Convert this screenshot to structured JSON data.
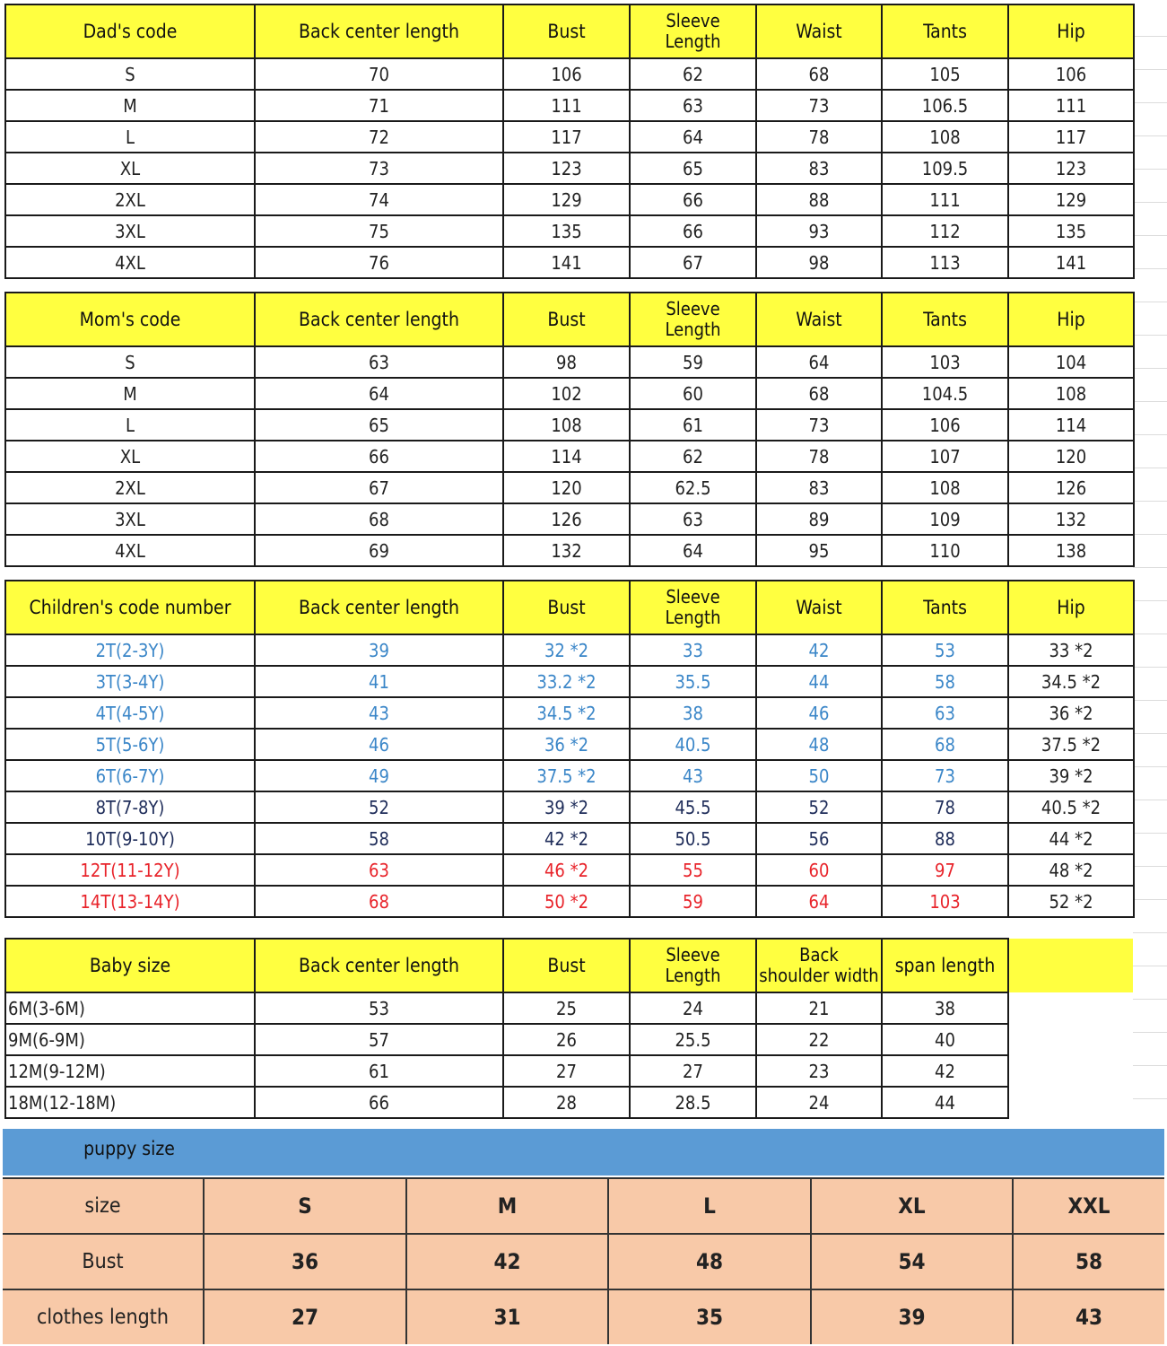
{
  "palette": {
    "header_yellow": "#ffff40",
    "blue": "#3a86c8",
    "navy": "#1f2d5a",
    "red": "#e8232a",
    "black": "#222222",
    "band_blue": "#5b9bd5",
    "puppy_peach": "#f8c9a8"
  },
  "sections": [
    {
      "id": "dad",
      "headers": [
        "Dad's code",
        "Back center length",
        "Bust",
        "Sleeve\nLength",
        "Waist",
        "Tants",
        "Hip"
      ],
      "rows": [
        {
          "cells": [
            "S",
            "70",
            "106",
            "62",
            "68",
            "105",
            "106"
          ]
        },
        {
          "cells": [
            "M",
            "71",
            "111",
            "63",
            "73",
            "106.5",
            "111"
          ]
        },
        {
          "cells": [
            "L",
            "72",
            "117",
            "64",
            "78",
            "108",
            "117"
          ]
        },
        {
          "cells": [
            "XL",
            "73",
            "123",
            "65",
            "83",
            "109.5",
            "123"
          ]
        },
        {
          "cells": [
            "2XL",
            "74",
            "129",
            "66",
            "88",
            "111",
            "129"
          ]
        },
        {
          "cells": [
            "3XL",
            "75",
            "135",
            "66",
            "93",
            "112",
            "135"
          ]
        },
        {
          "cells": [
            "4XL",
            "76",
            "141",
            "67",
            "98",
            "113",
            "141"
          ]
        }
      ]
    },
    {
      "id": "mom",
      "headers": [
        "Mom's code",
        "Back center length",
        "Bust",
        "Sleeve\nLength",
        "Waist",
        "Tants",
        "Hip"
      ],
      "rows": [
        {
          "cells": [
            "S",
            "63",
            "98",
            "59",
            "64",
            "103",
            "104"
          ]
        },
        {
          "cells": [
            "M",
            "64",
            "102",
            "60",
            "68",
            "104.5",
            "108"
          ]
        },
        {
          "cells": [
            "L",
            "65",
            "108",
            "61",
            "73",
            "106",
            "114"
          ]
        },
        {
          "cells": [
            "XL",
            "66",
            "114",
            "62",
            "78",
            "107",
            "120"
          ]
        },
        {
          "cells": [
            "2XL",
            "67",
            "120",
            "62.5",
            "83",
            "108",
            "126"
          ]
        },
        {
          "cells": [
            "3XL",
            "68",
            "126",
            "63",
            "89",
            "109",
            "132"
          ]
        },
        {
          "cells": [
            "4XL",
            "69",
            "132",
            "64",
            "95",
            "110",
            "138"
          ]
        }
      ]
    },
    {
      "id": "children",
      "headers": [
        "Children's code number",
        "Back center length",
        "Bust",
        "Sleeve\nLength",
        "Waist",
        "Tants",
        "Hip"
      ],
      "rows": [
        {
          "color": "blue",
          "cells": [
            "2T(2-3Y)",
            "39",
            "32 *2",
            "33",
            "42",
            "53",
            "33 *2"
          ]
        },
        {
          "color": "blue",
          "cells": [
            "3T(3-4Y)",
            "41",
            "33.2 *2",
            "35.5",
            "44",
            "58",
            "34.5 *2"
          ]
        },
        {
          "color": "blue",
          "cells": [
            "4T(4-5Y)",
            "43",
            "34.5 *2",
            "38",
            "46",
            "63",
            "36 *2"
          ]
        },
        {
          "color": "blue",
          "cells": [
            "5T(5-6Y)",
            "46",
            "36 *2",
            "40.5",
            "48",
            "68",
            "37.5  *2"
          ]
        },
        {
          "color": "blue",
          "cells": [
            "6T(6-7Y)",
            "49",
            "37.5 *2",
            "43",
            "50",
            "73",
            "39 *2"
          ]
        },
        {
          "color": "navy",
          "cells": [
            "8T(7-8Y)",
            "52",
            "39 *2",
            "45.5",
            "52",
            "78",
            "40.5  *2"
          ]
        },
        {
          "color": "navy",
          "cells": [
            "10T(9-10Y)",
            "58",
            "42 *2",
            "50.5",
            "56",
            "88",
            "44 *2"
          ]
        },
        {
          "color": "red",
          "cells": [
            "12T(11-12Y)",
            "63",
            "46 *2",
            "55",
            "60",
            "97",
            "48 *2"
          ]
        },
        {
          "color": "red",
          "cells": [
            "14T(13-14Y)",
            "68",
            "50 *2",
            "59",
            "64",
            "103",
            "52 *2"
          ]
        }
      ]
    },
    {
      "id": "baby",
      "headers": [
        "Baby size",
        "Back center length",
        "Bust",
        "Sleeve\nLength",
        "Back\nshoulder width",
        "span length"
      ],
      "rows": [
        {
          "cells": [
            "6M(3-6M)",
            "53",
            "25",
            "24",
            "21",
            "38"
          ]
        },
        {
          "cells": [
            "9M(6-9M)",
            "57",
            "26",
            "25.5",
            "22",
            "40"
          ]
        },
        {
          "cells": [
            "12M(9-12M)",
            "61",
            "27",
            "27",
            "23",
            "42"
          ]
        },
        {
          "cells": [
            "18M(12-18M)",
            "66",
            "28",
            "28.5",
            "24",
            "44"
          ]
        }
      ]
    }
  ],
  "puppy": {
    "title": "puppy size",
    "rows": [
      {
        "label": "size",
        "values": [
          "S",
          "M",
          "L",
          "XL",
          "XXL"
        ]
      },
      {
        "label": "Bust",
        "values": [
          "36",
          "42",
          "48",
          "54",
          "58"
        ]
      },
      {
        "label": "clothes length",
        "values": [
          "27",
          "31",
          "35",
          "39",
          "43"
        ]
      }
    ]
  }
}
